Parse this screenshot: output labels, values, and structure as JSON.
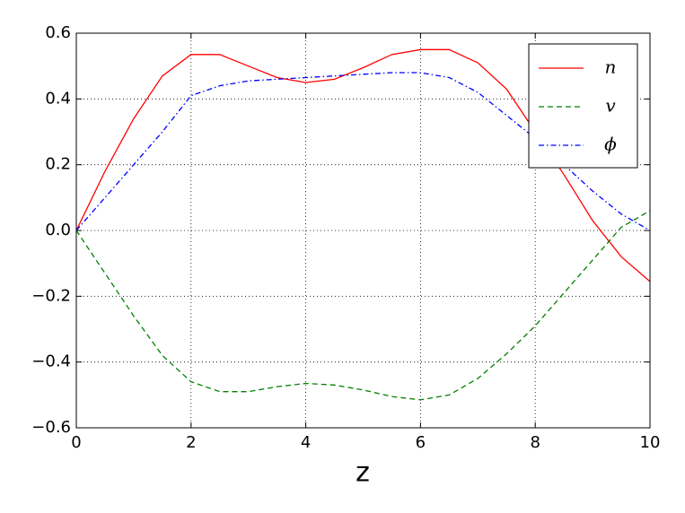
{
  "chart_data": {
    "type": "line",
    "xlabel": "z",
    "x": [
      0,
      0.5,
      1,
      1.5,
      2,
      2.5,
      3,
      3.5,
      4,
      4.5,
      5,
      5.5,
      6,
      6.5,
      7,
      7.5,
      8,
      8.5,
      9,
      9.5,
      10
    ],
    "series": [
      {
        "name": "n",
        "color": "#ff0000",
        "linestyle": "solid",
        "values": [
          0,
          0.18,
          0.34,
          0.47,
          0.535,
          0.535,
          0.5,
          0.465,
          0.45,
          0.46,
          0.495,
          0.535,
          0.55,
          0.55,
          0.51,
          0.43,
          0.3,
          0.17,
          0.03,
          -0.08,
          -0.155
        ]
      },
      {
        "name": "v",
        "color": "#008000",
        "linestyle": "dashed",
        "values": [
          0,
          -0.13,
          -0.26,
          -0.38,
          -0.46,
          -0.49,
          -0.49,
          -0.475,
          -0.465,
          -0.47,
          -0.485,
          -0.505,
          -0.515,
          -0.5,
          -0.45,
          -0.375,
          -0.29,
          -0.19,
          -0.09,
          0.01,
          0.06
        ]
      },
      {
        "name": "ϕ",
        "color": "#0000ff",
        "linestyle": "dashdot",
        "values": [
          0,
          0.1,
          0.2,
          0.3,
          0.41,
          0.44,
          0.455,
          0.46,
          0.465,
          0.47,
          0.475,
          0.48,
          0.48,
          0.465,
          0.42,
          0.35,
          0.28,
          0.2,
          0.12,
          0.05,
          0.0
        ]
      }
    ],
    "xlim": [
      0,
      10
    ],
    "xticks": [
      0,
      2,
      4,
      6,
      8,
      10
    ],
    "ylim": [
      -0.6,
      0.6
    ],
    "yticks": [
      {
        "value": -0.6,
        "label": "−0.6"
      },
      {
        "value": -0.4,
        "label": "−0.4"
      },
      {
        "value": -0.2,
        "label": "−0.2"
      },
      {
        "value": 0,
        "label": "0.0"
      },
      0.2,
      0.4,
      0.6
    ],
    "grid": true,
    "legend": "upper right"
  }
}
